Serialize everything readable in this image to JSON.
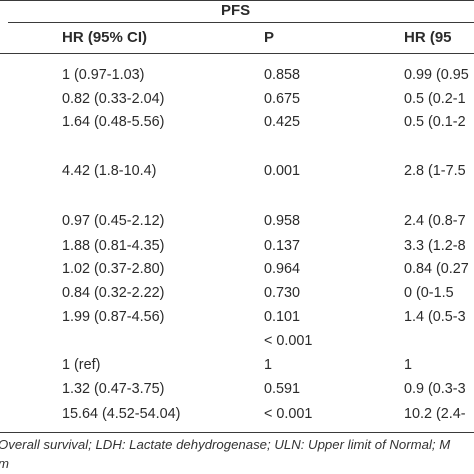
{
  "header": {
    "group": "PFS",
    "columns": [
      "HR (95% CI)",
      "P",
      "HR (95"
    ]
  },
  "rows": [
    {
      "hr": "1 (0.97-1.03)",
      "p": "0.858",
      "hr2": "0.99 (0.95"
    },
    {
      "hr": "0.82 (0.33-2.04)",
      "p": "0.675",
      "hr2": "0.5 (0.2-1"
    },
    {
      "hr": "1.64 (0.48-5.56)",
      "p": "0.425",
      "hr2": "0.5 (0.1-2"
    },
    {
      "hr": "4.42 (1.8-10.4)",
      "p": "0.001",
      "hr2": "2.8 (1-7.5"
    },
    {
      "hr": "0.97 (0.45-2.12)",
      "p": "0.958",
      "hr2": "2.4 (0.8-7"
    },
    {
      "hr": "1.88 (0.81-4.35)",
      "p": "0.137",
      "hr2": "3.3 (1.2-8"
    },
    {
      "hr": "1.02 (0.37-2.80)",
      "p": "0.964",
      "hr2": "0.84 (0.27"
    },
    {
      "hr": "0.84 (0.32-2.22)",
      "p": "0.730",
      "hr2": "0 (0-1.5"
    },
    {
      "hr": "1.99 (0.87-4.56)",
      "p": "0.101",
      "hr2": "1.4 (0.5-3"
    },
    {
      "hr": "",
      "p": "< 0.001",
      "hr2": ""
    },
    {
      "hr": "1 (ref)",
      "p": "1",
      "hr2": "1"
    },
    {
      "hr": "1.32 (0.47-3.75)",
      "p": "0.591",
      "hr2": "0.9 (0.3-3"
    },
    {
      "hr": "15.64 (4.52-54.04)",
      "p": "< 0.001",
      "hr2": "10.2 (2.4-"
    }
  ],
  "footnote": {
    "line1": "Overall survival; LDH: Lactate dehydrogenase; ULN: Upper limit of Normal; M",
    "line2": "m"
  }
}
